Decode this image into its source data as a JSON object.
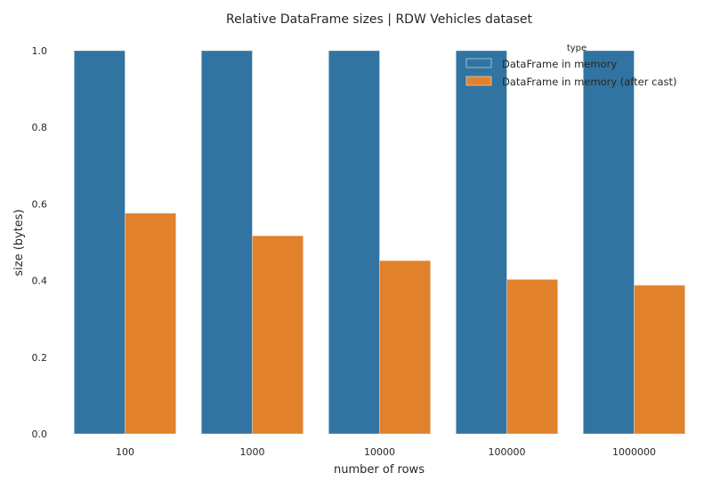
{
  "chart_data": {
    "type": "bar",
    "title": "Relative DataFrame sizes | RDW Vehicles dataset",
    "xlabel": "number of rows",
    "ylabel": "size (bytes)",
    "categories": [
      "100",
      "1000",
      "10000",
      "100000",
      "1000000"
    ],
    "series": [
      {
        "name": "DataFrame in memory",
        "color": "#3274a1",
        "values": [
          1.0,
          1.0,
          1.0,
          1.0,
          1.0
        ]
      },
      {
        "name": "DataFrame in memory (after cast)",
        "color": "#e1812c",
        "values": [
          0.576,
          0.517,
          0.452,
          0.403,
          0.388
        ]
      }
    ],
    "ylim": [
      0,
      1.0
    ],
    "yticks": [
      0.0,
      0.2,
      0.4,
      0.6,
      0.8,
      1.0
    ],
    "ytick_labels": [
      "0.0",
      "0.2",
      "0.4",
      "0.6",
      "0.8",
      "1.0"
    ],
    "grid": false,
    "legend": {
      "title": "type",
      "placement": "top-right"
    }
  }
}
